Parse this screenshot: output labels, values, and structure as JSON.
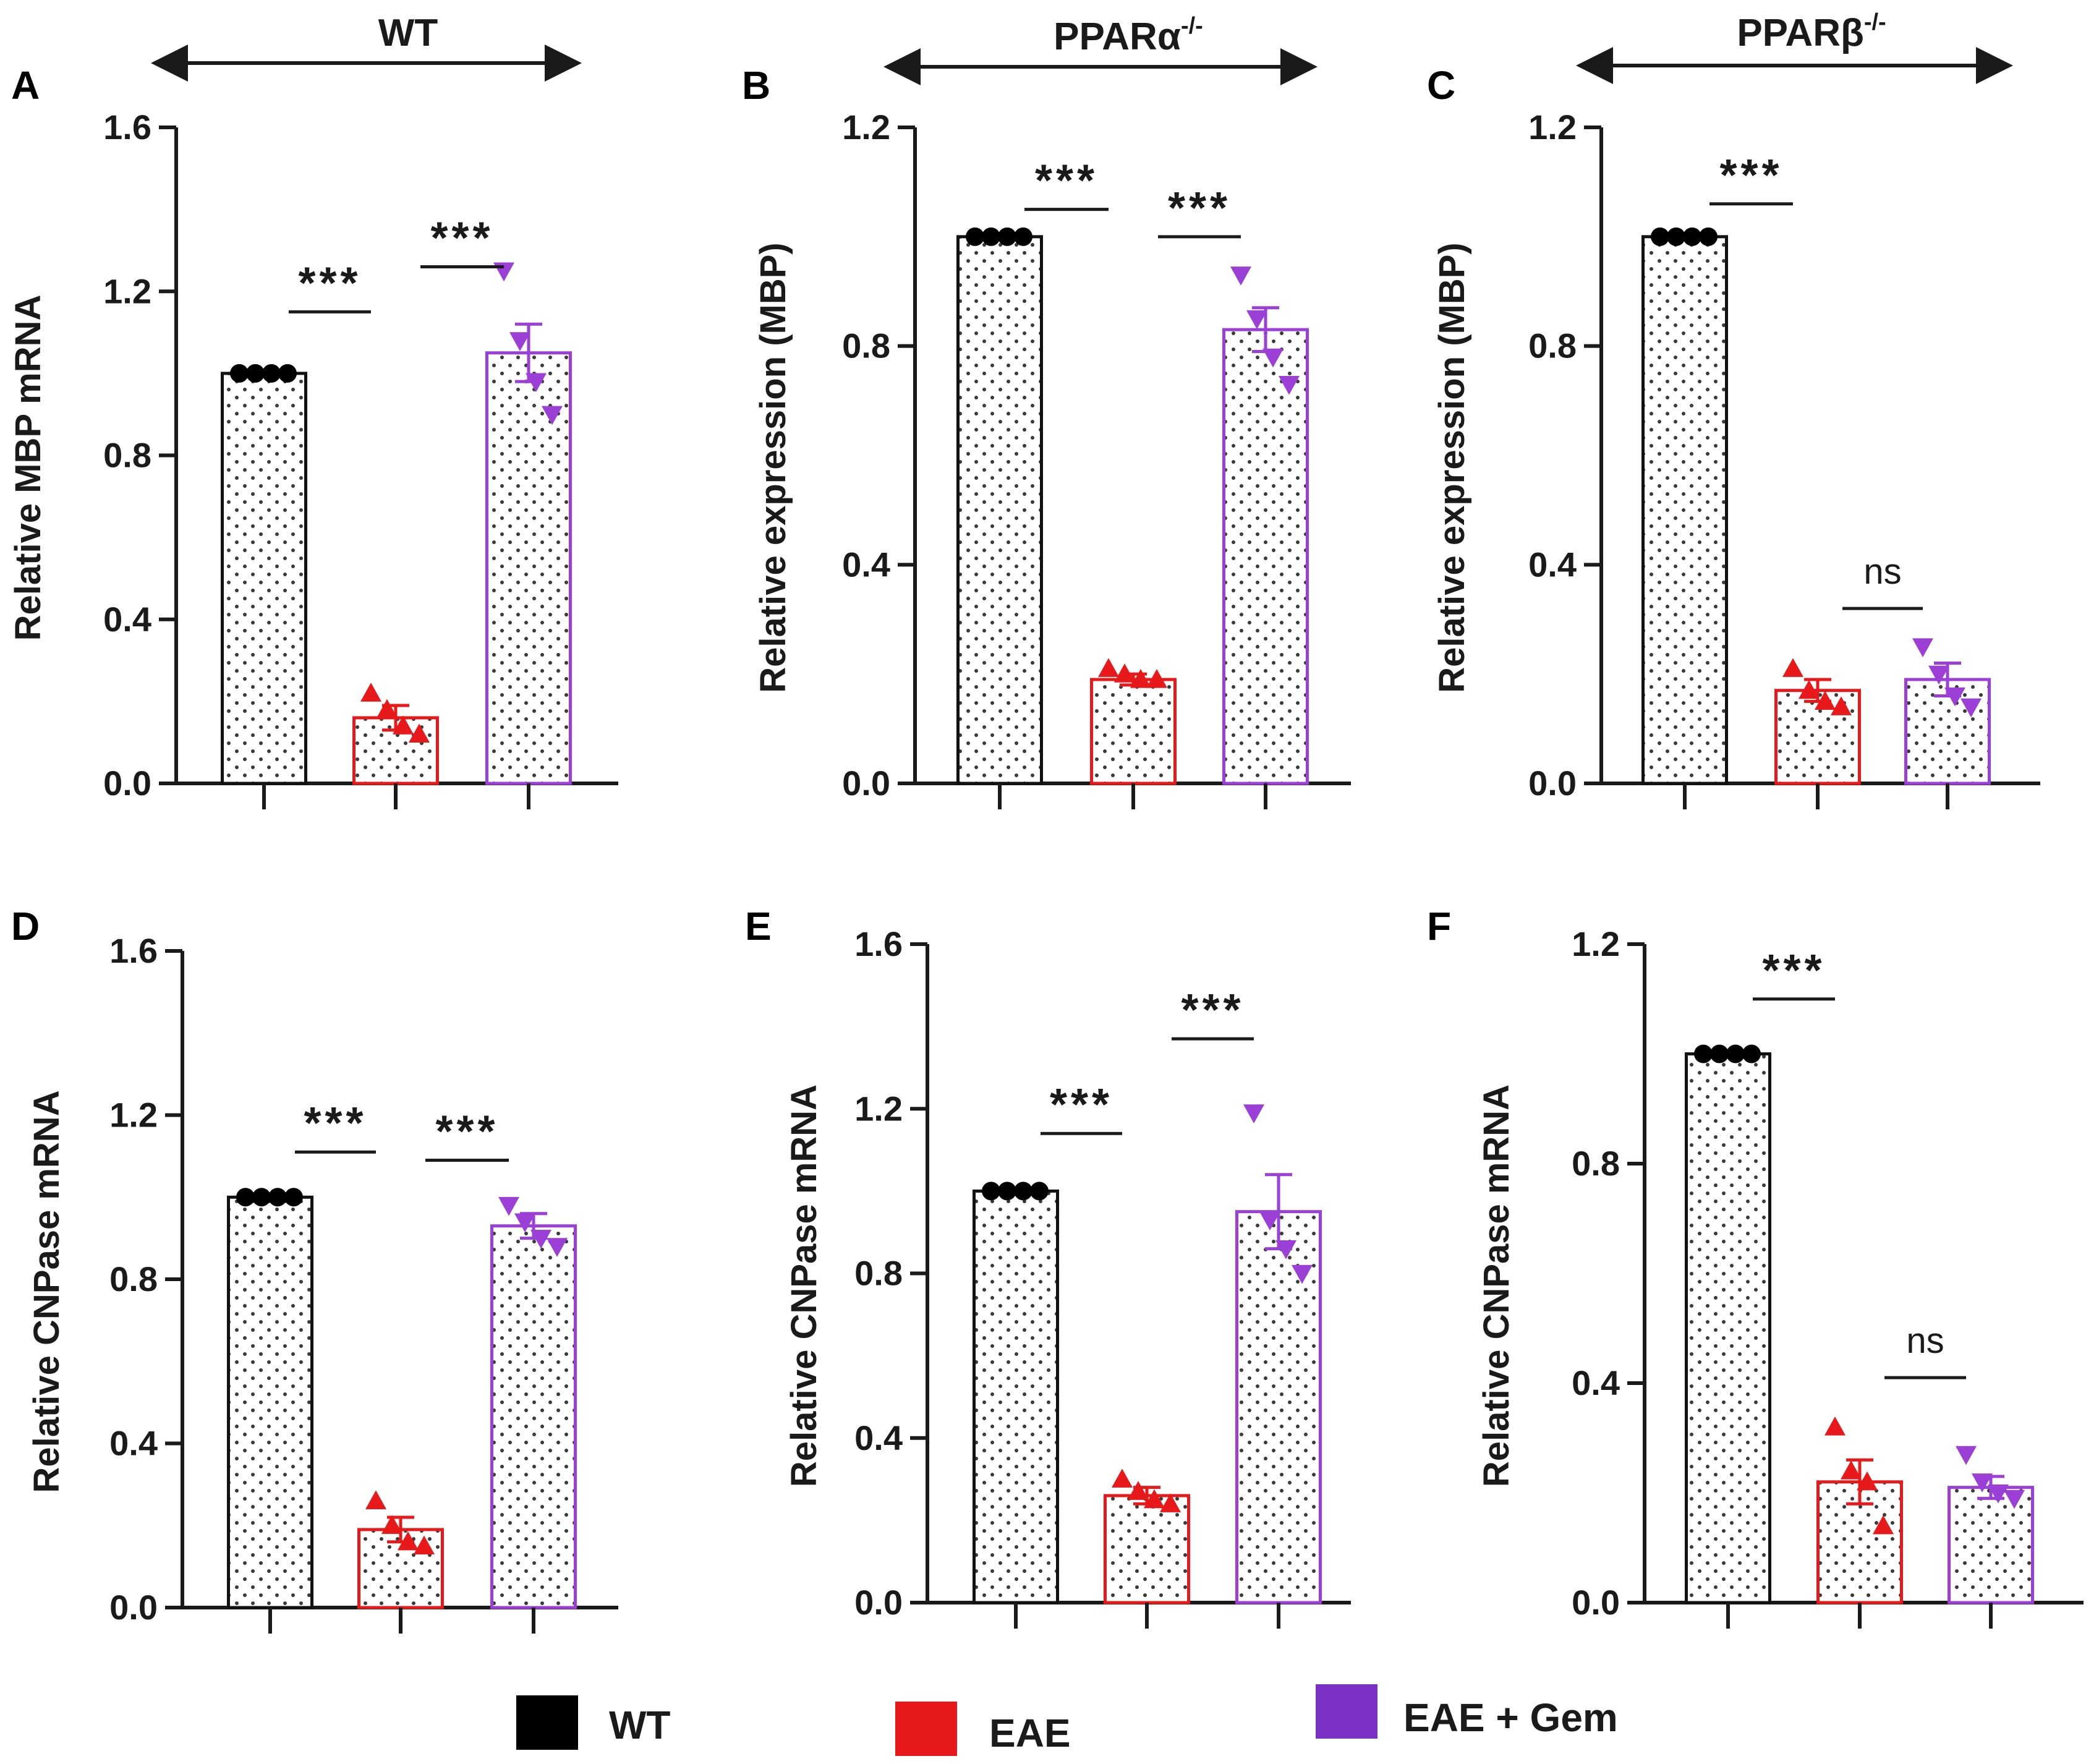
{
  "chart_data": [
    {
      "panel": "A",
      "type": "bar",
      "ylabel": "Relative MBP mRNA",
      "ylim": [
        0,
        1.6
      ],
      "yticks": [
        "0.0",
        "0.4",
        "0.8",
        "1.2",
        "1.6"
      ],
      "categories": [
        "WT",
        "EAE",
        "EAE + Gem"
      ],
      "values": [
        1.0,
        0.16,
        1.05
      ],
      "errors": [
        0.0,
        0.03,
        0.07
      ],
      "points": [
        [
          1.0,
          1.0,
          1.0,
          1.0
        ],
        [
          0.22,
          0.18,
          0.14,
          0.12
        ],
        [
          1.25,
          1.08,
          0.98,
          0.9
        ]
      ],
      "significance": [
        {
          "from": 0,
          "to": 1,
          "label": "***",
          "y": 1.15
        },
        {
          "from": 1,
          "to": 2,
          "label": "***",
          "y": 1.26
        }
      ]
    },
    {
      "panel": "B",
      "type": "bar",
      "ylabel": "Relative  expression (MBP)",
      "ylim": [
        0,
        1.2
      ],
      "yticks": [
        "0.0",
        "0.4",
        "0.8",
        "1.2"
      ],
      "categories": [
        "WT",
        "EAE",
        "EAE + Gem"
      ],
      "values": [
        1.0,
        0.19,
        0.83
      ],
      "errors": [
        0.0,
        0.01,
        0.04
      ],
      "points": [
        [
          1.0,
          1.0,
          1.0,
          1.0
        ],
        [
          0.21,
          0.2,
          0.19,
          0.19
        ],
        [
          0.93,
          0.85,
          0.78,
          0.73
        ]
      ],
      "significance": [
        {
          "from": 0,
          "to": 1,
          "label": "***",
          "y": 1.05
        },
        {
          "from": 1,
          "to": 2,
          "label": "***",
          "y": 1.0
        }
      ]
    },
    {
      "panel": "C",
      "type": "bar",
      "ylabel": "Relative  expression (MBP)",
      "ylim": [
        0,
        1.2
      ],
      "yticks": [
        "0.0",
        "0.4",
        "0.8",
        "1.2"
      ],
      "categories": [
        "WT",
        "EAE",
        "EAE + Gem"
      ],
      "values": [
        1.0,
        0.17,
        0.19
      ],
      "errors": [
        0.0,
        0.02,
        0.03
      ],
      "points": [
        [
          1.0,
          1.0,
          1.0,
          1.0
        ],
        [
          0.21,
          0.17,
          0.15,
          0.14
        ],
        [
          0.25,
          0.2,
          0.16,
          0.14
        ]
      ],
      "significance": [
        {
          "from": 0,
          "to": 1,
          "label": "***",
          "y": 1.06
        },
        {
          "from": 1,
          "to": 2,
          "label": "ns",
          "y": 0.32
        }
      ]
    },
    {
      "panel": "D",
      "type": "bar",
      "ylabel": "Relative CNPase mRNA",
      "ylim": [
        0,
        1.6
      ],
      "yticks": [
        "0.0",
        "0.4",
        "0.8",
        "1.2",
        "1.6"
      ],
      "categories": [
        "WT",
        "EAE",
        "EAE + Gem"
      ],
      "values": [
        1.0,
        0.19,
        0.93
      ],
      "errors": [
        0.0,
        0.03,
        0.03
      ],
      "points": [
        [
          1.0,
          1.0,
          1.0,
          1.0
        ],
        [
          0.26,
          0.2,
          0.16,
          0.15
        ],
        [
          0.98,
          0.94,
          0.9,
          0.88
        ]
      ],
      "significance": [
        {
          "from": 0,
          "to": 1,
          "label": "***",
          "y": 1.11
        },
        {
          "from": 1,
          "to": 2,
          "label": "***",
          "y": 1.09
        }
      ]
    },
    {
      "panel": "E",
      "type": "bar",
      "ylabel": "Relative CNPase mRNA",
      "ylim": [
        0,
        1.6
      ],
      "yticks": [
        "0.0",
        "0.4",
        "0.8",
        "1.2",
        "1.6"
      ],
      "categories": [
        "WT",
        "EAE",
        "EAE + Gem"
      ],
      "values": [
        1.0,
        0.26,
        0.95
      ],
      "errors": [
        0.0,
        0.02,
        0.09
      ],
      "points": [
        [
          1.0,
          1.0,
          1.0,
          1.0
        ],
        [
          0.3,
          0.27,
          0.25,
          0.24
        ],
        [
          1.19,
          0.93,
          0.86,
          0.8
        ]
      ],
      "significance": [
        {
          "from": 0,
          "to": 1,
          "label": "***",
          "y": 1.14
        },
        {
          "from": 1,
          "to": 2,
          "label": "***",
          "y": 1.37
        }
      ]
    },
    {
      "panel": "F",
      "type": "bar",
      "ylabel": "Relative CNPase mRNA",
      "ylim": [
        0,
        1.2
      ],
      "yticks": [
        "0.0",
        "0.4",
        "0.8",
        "1.2"
      ],
      "categories": [
        "WT",
        "EAE",
        "EAE + Gem"
      ],
      "values": [
        1.0,
        0.22,
        0.21
      ],
      "errors": [
        0.0,
        0.04,
        0.02
      ],
      "points": [
        [
          1.0,
          1.0,
          1.0,
          1.0
        ],
        [
          0.32,
          0.24,
          0.22,
          0.14
        ],
        [
          0.27,
          0.22,
          0.2,
          0.19
        ]
      ],
      "significance": [
        {
          "from": 0,
          "to": 1,
          "label": "***",
          "y": 1.1
        },
        {
          "from": 1,
          "to": 2,
          "label": "ns",
          "y": 0.41
        }
      ]
    }
  ],
  "group_titles": [
    {
      "label": "WT",
      "superscript": ""
    },
    {
      "label": "PPARα",
      "superscript": "-/-"
    },
    {
      "label": "PPARβ",
      "superscript": "-/-"
    }
  ],
  "legend": [
    {
      "label": "WT",
      "color": "#000000"
    },
    {
      "label": "EAE",
      "color": "#e8191b"
    },
    {
      "label": "EAE + Gem",
      "color": "#7a31c4"
    }
  ],
  "colors": {
    "WT": "#111111",
    "EAE": "#e8191b",
    "EAE + Gem": "#9b3fd6",
    "axis": "#1a1a1a",
    "dots": "#3a3a3a"
  }
}
